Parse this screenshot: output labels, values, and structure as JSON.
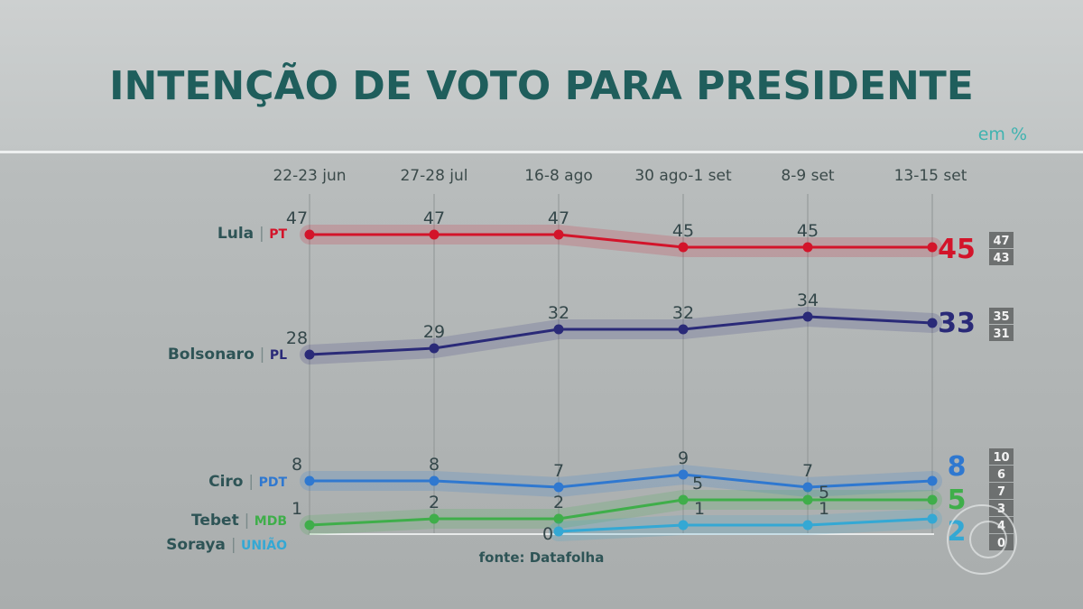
{
  "chart_data": {
    "type": "line",
    "title": "INTENÇÃO DE VOTO PARA PRESIDENTE",
    "unit": "em %",
    "source": "fonte: Datafolha",
    "categories": [
      "22-23 jun",
      "27-28 jul",
      "16-8 ago",
      "30 ago-1 set",
      "8-9 set",
      "13-15 set"
    ],
    "ylim": [
      0,
      50
    ],
    "grid": "vertical",
    "series": [
      {
        "name": "Lula",
        "party": "PT",
        "color": "#d3142a",
        "values": [
          47,
          47,
          47,
          45,
          45,
          45
        ],
        "range": [
          "47",
          "43"
        ]
      },
      {
        "name": "Bolsonaro",
        "party": "PL",
        "color": "#2a2a78",
        "values": [
          28,
          29,
          32,
          32,
          34,
          33
        ],
        "range": [
          "35",
          "31"
        ]
      },
      {
        "name": "Ciro",
        "party": "PDT",
        "color": "#2f78d0",
        "values": [
          8,
          8,
          7,
          9,
          7,
          8
        ],
        "range": [
          "10",
          "6"
        ]
      },
      {
        "name": "Tebet",
        "party": "MDB",
        "color": "#3fae4a",
        "values": [
          1,
          2,
          2,
          5,
          5,
          5
        ],
        "range": [
          "7",
          "3"
        ]
      },
      {
        "name": "Soraya",
        "party": "UNIÃO",
        "color": "#34a8d4",
        "values": [
          null,
          null,
          0,
          1,
          1,
          2
        ],
        "range": [
          "4",
          "0"
        ]
      }
    ]
  }
}
